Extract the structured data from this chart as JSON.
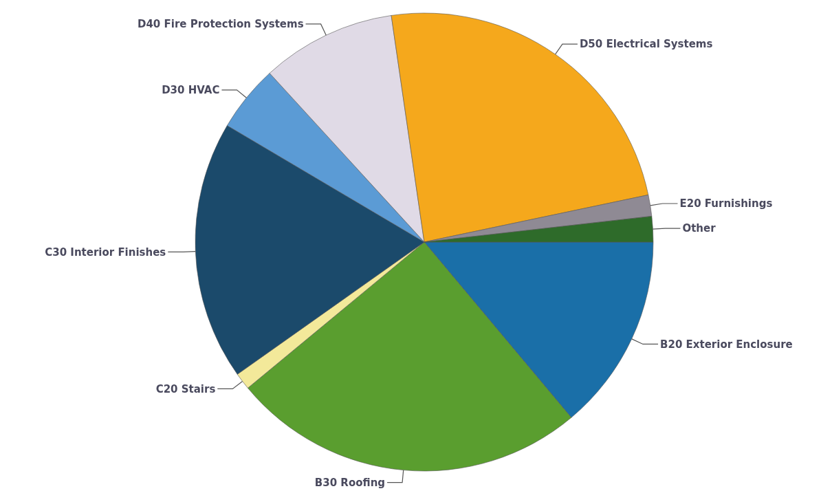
{
  "chart_data": {
    "type": "pie",
    "categories": [
      "B20 Exterior Enclosure",
      "B30 Roofing",
      "C20 Stairs",
      "C30 Interior Finishes",
      "D30 HVAC",
      "D40 Fire Protection Systems",
      "D50 Electrical Systems",
      "E20 Furnishings",
      "Other"
    ],
    "values": [
      13.9,
      25.1,
      1.2,
      18.3,
      4.7,
      9.5,
      24.0,
      1.5,
      1.8
    ],
    "colors": [
      "#1a6fa8",
      "#5a9e2f",
      "#f3e99a",
      "#1b4a6b",
      "#5b9bd5",
      "#e0dae6",
      "#f5a81c",
      "#8f8a94",
      "#2e6b2a"
    ]
  }
}
